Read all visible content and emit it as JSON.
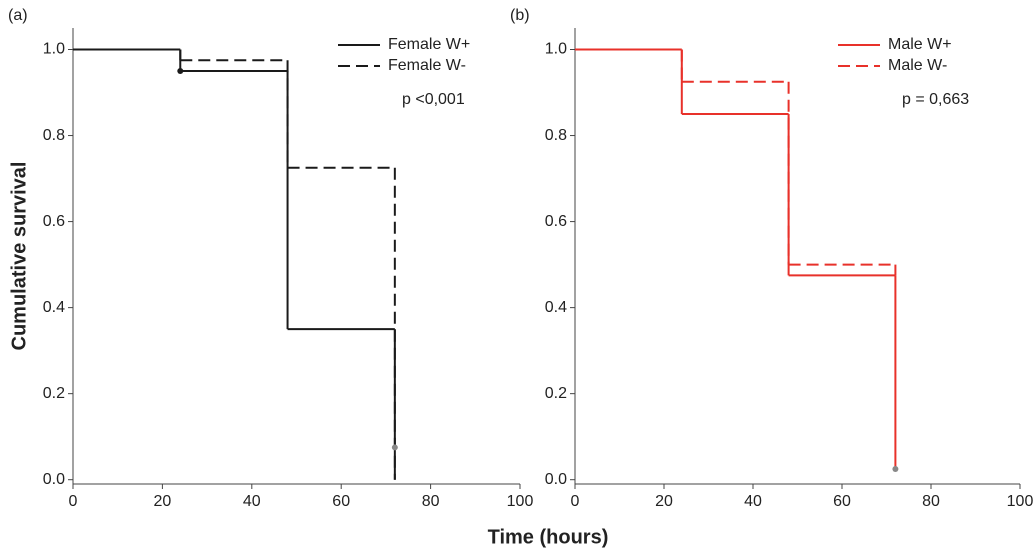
{
  "chart_data": [
    {
      "type": "step",
      "panel_label": "(a)",
      "ylabel": "Cumulative survival",
      "xlabel": "Time (hours)",
      "annotation": "p <0,001",
      "x": [
        0,
        24,
        48,
        72
      ],
      "series": [
        {
          "name": "Female W+",
          "color": "#1a1a1a",
          "dashed": false,
          "values": [
            1,
            0.95,
            0.35,
            0
          ]
        },
        {
          "name": "Female W-",
          "color": "#1a1a1a",
          "dashed": true,
          "values": [
            1,
            0.975,
            0.725,
            0
          ]
        }
      ],
      "censored": [
        {
          "x": 24,
          "y": 0.95,
          "color": "#1a1a1a"
        },
        {
          "x": 72,
          "y": 0.075,
          "color": "#888888"
        }
      ],
      "xlim": [
        0,
        100
      ],
      "xticks": [
        0,
        20,
        40,
        60,
        80,
        100
      ],
      "ylim": [
        -0.01,
        1.05
      ],
      "yticks": [
        {
          "value": 0,
          "label": "0.0"
        },
        0.2,
        0.4,
        0.6,
        0.8,
        {
          "value": 1,
          "label": "1.0"
        }
      ]
    },
    {
      "type": "step",
      "panel_label": "(b)",
      "annotation": "p = 0,663",
      "x": [
        0,
        24,
        48,
        72
      ],
      "series": [
        {
          "name": "Male W+",
          "color": "#e8312a",
          "dashed": false,
          "values": [
            1,
            0.85,
            0.475,
            0.025
          ]
        },
        {
          "name": "Male W-",
          "color": "#e8312a",
          "dashed": true,
          "values": [
            1,
            0.925,
            0.5,
            0.475
          ]
        }
      ],
      "censored": [
        {
          "x": 72,
          "y": 0.025,
          "color": "#888888"
        }
      ],
      "xlim": [
        0,
        100
      ],
      "xticks": [
        0,
        20,
        40,
        60,
        80,
        100
      ],
      "ylim": [
        -0.01,
        1.05
      ],
      "yticks": [
        {
          "value": 0,
          "label": "0.0"
        },
        0.2,
        0.4,
        0.6,
        0.8,
        {
          "value": 1,
          "label": "1.0"
        }
      ]
    }
  ]
}
